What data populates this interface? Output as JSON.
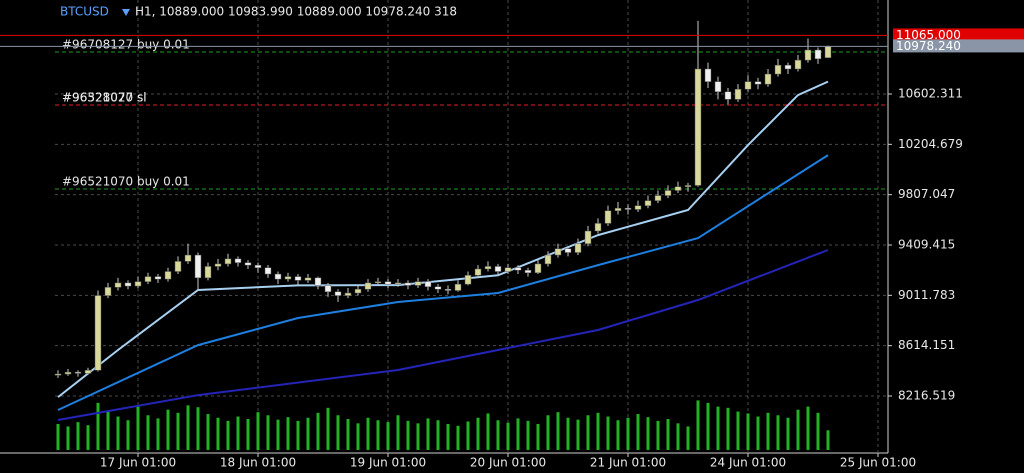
{
  "chart_data": {
    "type": "candlestick",
    "header": {
      "symbol": "BTCUSD",
      "text": "H1, 10889.000 10983.990 10889.000 10978.240 318"
    },
    "xlim": [
      -0.3,
      83.0
    ],
    "ylim": [
      7766.2,
      11344.9
    ],
    "yticks": [
      10602.311,
      10204.679,
      9807.047,
      9409.415,
      9011.783,
      8614.151,
      8216.519
    ],
    "xticks": [
      {
        "value": 8,
        "label": "17 Jun 01:00"
      },
      {
        "value": 20,
        "label": "18 Jun 01:00"
      },
      {
        "value": 33,
        "label": "19 Jun 01:00"
      },
      {
        "value": 45,
        "label": "20 Jun 01:00"
      },
      {
        "value": 57,
        "label": "21 Jun 01:00"
      },
      {
        "value": 69,
        "label": "24 Jun 01:00"
      },
      {
        "value": 82,
        "label": "25 Jun 01:00"
      }
    ],
    "grid": true,
    "bull_color": "#d8d89a",
    "bear_color": "#f0f0f0",
    "wick_color": "#c8c8c8",
    "volume_color": "#22b322",
    "candles": [
      [
        8380,
        8420,
        8360,
        8390
      ],
      [
        8390,
        8430,
        8375,
        8405
      ],
      [
        8405,
        8420,
        8370,
        8395
      ],
      [
        8395,
        8440,
        8385,
        8420
      ],
      [
        8420,
        9050,
        8410,
        9010
      ],
      [
        9010,
        9110,
        8990,
        9075
      ],
      [
        9075,
        9150,
        9050,
        9110
      ],
      [
        9110,
        9130,
        9060,
        9085
      ],
      [
        9085,
        9160,
        9070,
        9120
      ],
      [
        9120,
        9190,
        9100,
        9160
      ],
      [
        9160,
        9180,
        9110,
        9140
      ],
      [
        9140,
        9230,
        9120,
        9200
      ],
      [
        9200,
        9320,
        9180,
        9280
      ],
      [
        9280,
        9420,
        9260,
        9330
      ],
      [
        9330,
        9350,
        9050,
        9150
      ],
      [
        9150,
        9270,
        9130,
        9240
      ],
      [
        9240,
        9300,
        9210,
        9260
      ],
      [
        9260,
        9340,
        9240,
        9300
      ],
      [
        9300,
        9320,
        9240,
        9270
      ],
      [
        9270,
        9290,
        9220,
        9250
      ],
      [
        9250,
        9270,
        9190,
        9230
      ],
      [
        9230,
        9250,
        9150,
        9180
      ],
      [
        9180,
        9200,
        9100,
        9140
      ],
      [
        9140,
        9190,
        9120,
        9160
      ],
      [
        9160,
        9180,
        9090,
        9130
      ],
      [
        9130,
        9180,
        9110,
        9150
      ],
      [
        9150,
        9160,
        9060,
        9090
      ],
      [
        9090,
        9110,
        9000,
        9040
      ],
      [
        9040,
        9060,
        8960,
        9010
      ],
      [
        9010,
        9070,
        8990,
        9030
      ],
      [
        9030,
        9090,
        9010,
        9060
      ],
      [
        9060,
        9140,
        9040,
        9110
      ],
      [
        9110,
        9150,
        9090,
        9120
      ],
      [
        9120,
        9140,
        9070,
        9100
      ],
      [
        9100,
        9140,
        9080,
        9110
      ],
      [
        9110,
        9130,
        9060,
        9090
      ],
      [
        9090,
        9150,
        9070,
        9120
      ],
      [
        9120,
        9140,
        9050,
        9080
      ],
      [
        9080,
        9100,
        9030,
        9060
      ],
      [
        9060,
        9090,
        9020,
        9050
      ],
      [
        9050,
        9130,
        9040,
        9100
      ],
      [
        9100,
        9200,
        9090,
        9170
      ],
      [
        9170,
        9250,
        9150,
        9220
      ],
      [
        9220,
        9280,
        9200,
        9240
      ],
      [
        9240,
        9260,
        9170,
        9200
      ],
      [
        9200,
        9260,
        9180,
        9230
      ],
      [
        9230,
        9250,
        9180,
        9210
      ],
      [
        9210,
        9230,
        9160,
        9190
      ],
      [
        9190,
        9290,
        9180,
        9260
      ],
      [
        9260,
        9360,
        9240,
        9330
      ],
      [
        9330,
        9420,
        9310,
        9380
      ],
      [
        9380,
        9400,
        9320,
        9350
      ],
      [
        9350,
        9460,
        9330,
        9420
      ],
      [
        9420,
        9560,
        9400,
        9520
      ],
      [
        9520,
        9620,
        9500,
        9580
      ],
      [
        9580,
        9720,
        9560,
        9680
      ],
      [
        9680,
        9750,
        9650,
        9700
      ],
      [
        9700,
        9730,
        9650,
        9690
      ],
      [
        9690,
        9760,
        9670,
        9720
      ],
      [
        9720,
        9800,
        9700,
        9760
      ],
      [
        9760,
        9840,
        9740,
        9800
      ],
      [
        9800,
        9880,
        9780,
        9840
      ],
      [
        9840,
        9910,
        9820,
        9870
      ],
      [
        9870,
        9900,
        9830,
        9880
      ],
      [
        9880,
        11180,
        9870,
        10800
      ],
      [
        10800,
        10850,
        10650,
        10700
      ],
      [
        10700,
        10740,
        10560,
        10620
      ],
      [
        10620,
        10650,
        10520,
        10560
      ],
      [
        10560,
        10680,
        10540,
        10640
      ],
      [
        10640,
        10750,
        10620,
        10700
      ],
      [
        10700,
        10730,
        10640,
        10680
      ],
      [
        10680,
        10800,
        10660,
        10760
      ],
      [
        10760,
        10880,
        10740,
        10830
      ],
      [
        10830,
        10850,
        10760,
        10800
      ],
      [
        10800,
        10910,
        10780,
        10870
      ],
      [
        10870,
        11040,
        10850,
        10950
      ],
      [
        10950,
        10970,
        10840,
        10880
      ],
      [
        10889,
        10983.99,
        10889,
        10978.24
      ]
    ],
    "vlim": [
      0,
      1000
    ],
    "volumes": [
      420,
      380,
      450,
      400,
      760,
      620,
      540,
      480,
      700,
      560,
      510,
      650,
      600,
      720,
      690,
      580,
      520,
      470,
      540,
      500,
      610,
      560,
      490,
      530,
      470,
      520,
      600,
      680,
      560,
      500,
      430,
      520,
      480,
      450,
      560,
      470,
      430,
      510,
      480,
      420,
      390,
      460,
      520,
      590,
      480,
      440,
      510,
      470,
      420,
      560,
      610,
      520,
      490,
      560,
      600,
      540,
      480,
      520,
      580,
      530,
      470,
      500,
      430,
      380,
      800,
      760,
      700,
      680,
      620,
      590,
      540,
      600,
      560,
      520,
      650,
      700,
      600,
      318
    ],
    "moving_averages": [
      {
        "color": "#a8d0f0",
        "x": [
          0,
          6,
          14,
          24,
          34,
          44,
          54,
          63,
          69,
          74,
          77
        ],
        "values": [
          8208,
          8580,
          9054,
          9090,
          9093,
          9170,
          9488,
          9686,
          10199,
          10594,
          10700
        ]
      },
      {
        "color": "#1e7fe0",
        "x": [
          0,
          14,
          24,
          34,
          44,
          54,
          64,
          77
        ],
        "values": [
          8106,
          8619,
          8833,
          8959,
          9030,
          9251,
          9464,
          10120
        ]
      },
      {
        "color": "#2424b8",
        "x": [
          0,
          14,
          34,
          54,
          64,
          77
        ],
        "values": [
          8027,
          8224,
          8422,
          8738,
          8975,
          9370
        ]
      }
    ],
    "order_lines": [
      {
        "label": "#96708127 buy 0.01",
        "value": 10934,
        "color": "#1f9a1f"
      },
      {
        "label": "#96328027 sl",
        "value": 10515,
        "color": "#e02020"
      },
      {
        "label": "#96521070 sl",
        "value": 10515,
        "color": "#e02020"
      },
      {
        "label": "#96521070 buy 0.01",
        "value": 9852,
        "color": "#1f9a1f"
      }
    ],
    "price_lines": [
      {
        "value": 11065,
        "label": "11065.000",
        "color": "#e00000"
      },
      {
        "value": 10978.24,
        "label": "10978.240",
        "color": "#8a96a8"
      }
    ]
  }
}
